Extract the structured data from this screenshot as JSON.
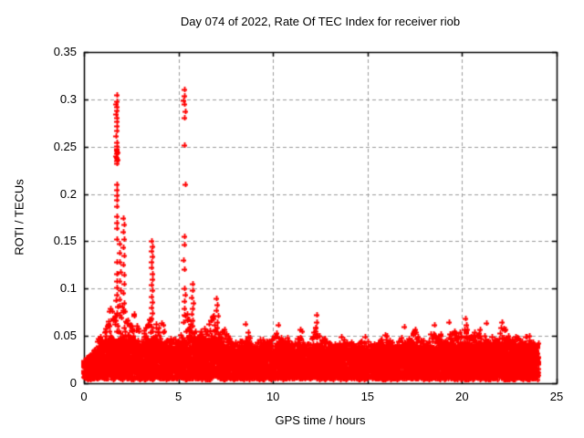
{
  "chart_data": {
    "type": "scatter",
    "title": "Day 074 of 2022, Rate Of TEC Index for receiver riob",
    "xlabel": "GPS time / hours",
    "ylabel": "ROTI / TECUs",
    "xlim": [
      0,
      25
    ],
    "ylim": [
      0,
      0.35
    ],
    "xticks": [
      [
        0,
        "0"
      ],
      [
        5,
        "5"
      ],
      [
        10,
        "10"
      ],
      [
        15,
        "15"
      ],
      [
        20,
        "20"
      ],
      [
        25,
        "25"
      ]
    ],
    "yticks": [
      [
        0,
        "0"
      ],
      [
        0.05,
        "0.05"
      ],
      [
        0.1,
        "0.1"
      ],
      [
        0.15,
        "0.15"
      ],
      [
        0.2,
        "0.2"
      ],
      [
        0.25,
        "0.25"
      ],
      [
        0.3,
        "0.3"
      ],
      [
        0.35,
        "0.35"
      ]
    ],
    "grid": {
      "show": true,
      "color": "#9c9c9c",
      "dash": [
        4,
        3
      ]
    },
    "border_color": "#000000",
    "background": "#ffffff",
    "legend": {
      "show": false
    },
    "series": [
      {
        "name": "ROTI",
        "marker": "plus",
        "color": "#ff0000",
        "marker_size": 6,
        "x_start": 0,
        "x_end": 24.05,
        "baseline_min": 0.004,
        "envelope": {
          "x_start": 0,
          "x_step": 0.25,
          "max_values": [
            0.025,
            0.03,
            0.035,
            0.05,
            0.065,
            0.09,
            0.11,
            0.1,
            0.115,
            0.1,
            0.09,
            0.075,
            0.065,
            0.075,
            0.085,
            0.085,
            0.08,
            0.065,
            0.06,
            0.055,
            0.06,
            0.07,
            0.08,
            0.095,
            0.07,
            0.07,
            0.065,
            0.08,
            0.085,
            0.07,
            0.06,
            0.055,
            0.05,
            0.055,
            0.063,
            0.055,
            0.05,
            0.055,
            0.06,
            0.055,
            0.05,
            0.062,
            0.06,
            0.055,
            0.05,
            0.05,
            0.062,
            0.055,
            0.05,
            0.068,
            0.055,
            0.05,
            0.055,
            0.05,
            0.05,
            0.055,
            0.05,
            0.052,
            0.05,
            0.055,
            0.05,
            0.05,
            0.055,
            0.06,
            0.058,
            0.05,
            0.05,
            0.055,
            0.06,
            0.055,
            0.06,
            0.062,
            0.058,
            0.06,
            0.062,
            0.055,
            0.06,
            0.065,
            0.062,
            0.058,
            0.068,
            0.065,
            0.068,
            0.06,
            0.058,
            0.064,
            0.06,
            0.06,
            0.065,
            0.06,
            0.065,
            0.06,
            0.055,
            0.055,
            0.058,
            0.055,
            0.05
          ]
        },
        "density_model": {
          "x_step": 0.01,
          "band_points_per_step": 3,
          "tail_probability": 0.6,
          "tail_exponent": 2.2,
          "seed": 74
        },
        "spike_points": [
          [
            1.72,
            0.305
          ],
          [
            1.74,
            0.298
          ],
          [
            1.7,
            0.295
          ],
          [
            1.76,
            0.292
          ],
          [
            1.73,
            0.288
          ],
          [
            1.71,
            0.284
          ],
          [
            1.75,
            0.281
          ],
          [
            1.73,
            0.277
          ],
          [
            1.72,
            0.272
          ],
          [
            1.74,
            0.267
          ],
          [
            1.71,
            0.261
          ],
          [
            1.73,
            0.255
          ],
          [
            1.75,
            0.251
          ],
          [
            1.72,
            0.248
          ],
          [
            1.76,
            0.246
          ],
          [
            1.74,
            0.243
          ],
          [
            1.7,
            0.24
          ],
          [
            1.73,
            0.238
          ],
          [
            1.75,
            0.235
          ],
          [
            1.72,
            0.232
          ],
          [
            1.78,
            0.236
          ],
          [
            1.77,
            0.244
          ],
          [
            1.74,
            0.21
          ],
          [
            1.72,
            0.204
          ],
          [
            1.76,
            0.199
          ],
          [
            1.73,
            0.194
          ],
          [
            1.75,
            0.187
          ],
          [
            1.74,
            0.176
          ],
          [
            1.72,
            0.17
          ],
          [
            1.76,
            0.164
          ],
          [
            1.74,
            0.152
          ],
          [
            1.73,
            0.128
          ],
          [
            1.75,
            0.116
          ],
          [
            1.72,
            0.108
          ],
          [
            1.76,
            0.101
          ],
          [
            1.74,
            0.094
          ],
          [
            1.7,
            0.088
          ],
          [
            1.78,
            0.081
          ],
          [
            1.73,
            0.074
          ],
          [
            1.71,
            0.067
          ],
          [
            1.77,
            0.061
          ],
          [
            1.75,
            0.055
          ],
          [
            1.88,
            0.148
          ],
          [
            1.9,
            0.138
          ],
          [
            1.87,
            0.128
          ],
          [
            1.91,
            0.118
          ],
          [
            1.89,
            0.108
          ],
          [
            1.92,
            0.098
          ],
          [
            1.86,
            0.089
          ],
          [
            2.08,
            0.175
          ],
          [
            2.1,
            0.168
          ],
          [
            2.07,
            0.16
          ],
          [
            2.12,
            0.152
          ],
          [
            2.09,
            0.144
          ],
          [
            2.11,
            0.135
          ],
          [
            2.08,
            0.125
          ],
          [
            2.13,
            0.115
          ],
          [
            2.1,
            0.105
          ],
          [
            2.07,
            0.095
          ],
          [
            2.12,
            0.085
          ],
          [
            2.09,
            0.075
          ],
          [
            3.58,
            0.15
          ],
          [
            3.6,
            0.145
          ],
          [
            3.56,
            0.14
          ],
          [
            3.62,
            0.134
          ],
          [
            3.59,
            0.128
          ],
          [
            3.57,
            0.122
          ],
          [
            3.63,
            0.116
          ],
          [
            3.6,
            0.11
          ],
          [
            3.55,
            0.104
          ],
          [
            3.64,
            0.098
          ],
          [
            3.58,
            0.092
          ],
          [
            3.61,
            0.086
          ],
          [
            3.56,
            0.08
          ],
          [
            3.62,
            0.074
          ],
          [
            3.59,
            0.068
          ],
          [
            5.3,
            0.31
          ],
          [
            5.33,
            0.304
          ],
          [
            5.28,
            0.299
          ],
          [
            5.32,
            0.295
          ],
          [
            5.35,
            0.287
          ],
          [
            5.29,
            0.281
          ],
          [
            5.31,
            0.252
          ],
          [
            5.34,
            0.21
          ],
          [
            5.3,
            0.155
          ],
          [
            5.33,
            0.147
          ],
          [
            5.28,
            0.13
          ],
          [
            5.32,
            0.121
          ],
          [
            5.3,
            0.1
          ],
          [
            5.35,
            0.094
          ],
          [
            5.29,
            0.087
          ],
          [
            5.33,
            0.079
          ],
          [
            5.31,
            0.072
          ],
          [
            5.27,
            0.065
          ],
          [
            5.72,
            0.105
          ],
          [
            5.75,
            0.098
          ],
          [
            5.7,
            0.091
          ],
          [
            5.77,
            0.085
          ],
          [
            5.73,
            0.079
          ],
          [
            5.71,
            0.073
          ],
          [
            5.76,
            0.067
          ],
          [
            5.74,
            0.061
          ],
          [
            7.02,
            0.09
          ],
          [
            7.05,
            0.083
          ],
          [
            7.0,
            0.077
          ],
          [
            7.08,
            0.071
          ],
          [
            7.03,
            0.065
          ],
          [
            7.06,
            0.059
          ],
          [
            12.3,
            0.072
          ],
          [
            12.32,
            0.065
          ],
          [
            12.28,
            0.059
          ],
          [
            20.15,
            0.068
          ],
          [
            20.2,
            0.062
          ],
          [
            20.25,
            0.057
          ],
          [
            8.52,
            0.063
          ],
          [
            10.28,
            0.062
          ],
          [
            16.95,
            0.06
          ],
          [
            19.3,
            0.065
          ],
          [
            22.1,
            0.065
          ],
          [
            21.3,
            0.064
          ],
          [
            18.55,
            0.062
          ]
        ]
      }
    ]
  }
}
